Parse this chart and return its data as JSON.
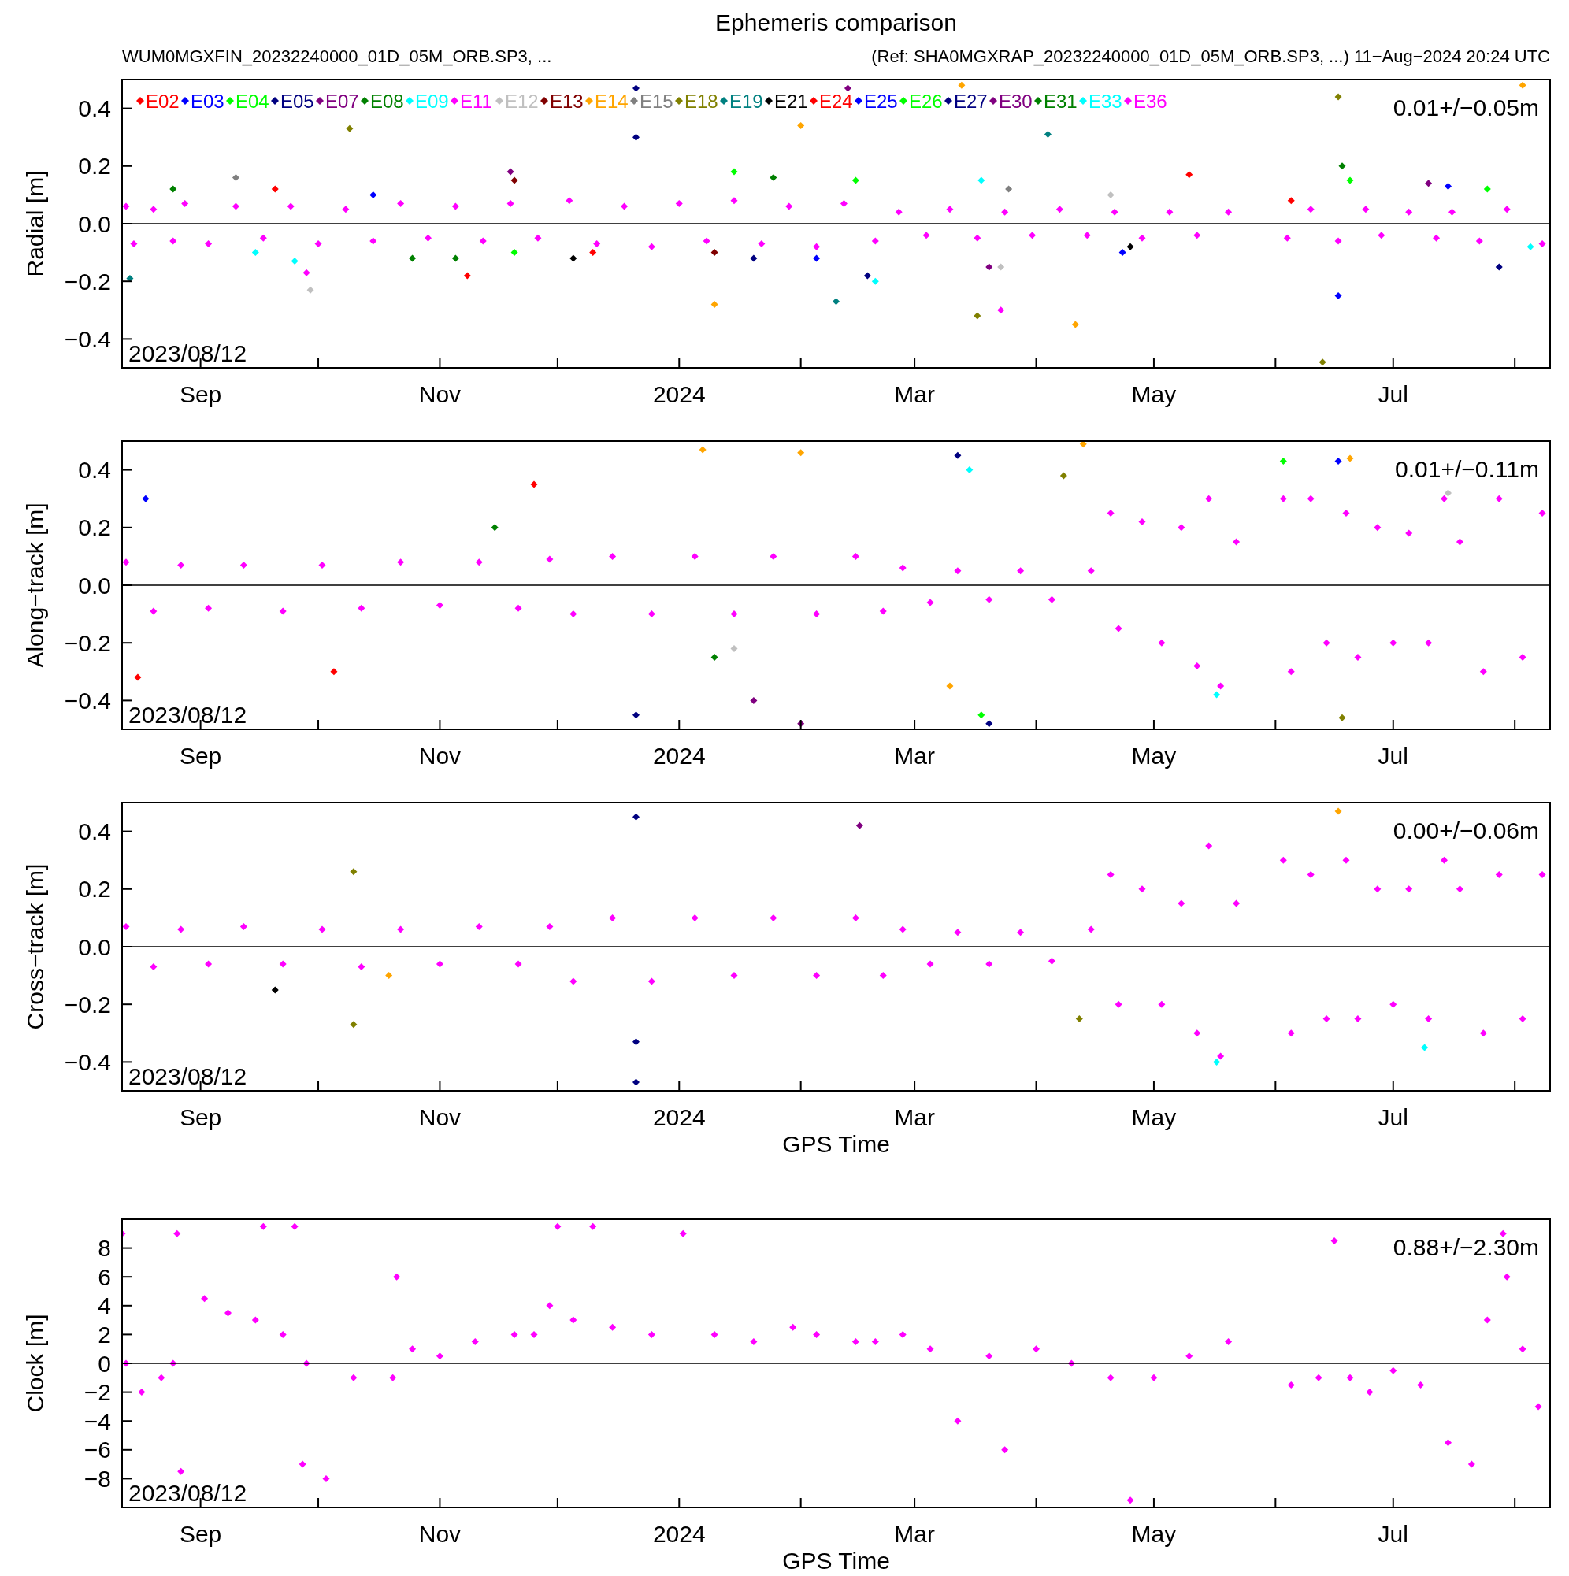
{
  "chart_data": [
    {
      "type": "scatter",
      "title": "Ephemeris comparison",
      "subtitle": "WUM0MGXFIN_20232240000_01D_05M_ORB.SP3, ...",
      "ylabel": "Radial [m]",
      "annotations": [
        "2023/08/12",
        "0.01+/−0.05m",
        "(Ref: SHA0MGXRAP_20232240000_01D_05M_ORB.SP3, ...) 11−Aug−2024 20:24 UTC"
      ],
      "xlim": [
        "2023-08-12",
        "2024-08-10"
      ],
      "xticks": [
        {
          "value": "2023-09-01",
          "label": "Sep"
        },
        {
          "value": "2023-10-01",
          "label": null
        },
        {
          "value": "2023-11-01",
          "label": "Nov"
        },
        {
          "value": "2023-12-01",
          "label": null
        },
        {
          "value": "2024-01-01",
          "label": "2024"
        },
        {
          "value": "2024-02-01",
          "label": null
        },
        {
          "value": "2024-03-01",
          "label": "Mar"
        },
        {
          "value": "2024-04-01",
          "label": null
        },
        {
          "value": "2024-05-01",
          "label": "May"
        },
        {
          "value": "2024-06-01",
          "label": null
        },
        {
          "value": "2024-07-01",
          "label": "Jul"
        },
        {
          "value": "2024-08-01",
          "label": null
        }
      ],
      "ylim": [
        -0.5,
        0.5
      ],
      "yticks": [
        {
          "value": -0.4,
          "label": "−0.4"
        },
        {
          "value": -0.2,
          "label": "−0.2"
        },
        {
          "value": 0,
          "label": "0.0"
        },
        {
          "value": 0.2,
          "label": "0.2"
        },
        {
          "value": 0.4,
          "label": "0.4"
        }
      ],
      "ref_lines": [
        {
          "axis": "y",
          "value": 0,
          "color": "#000000"
        }
      ],
      "legend": "top left",
      "marker": "diamond",
      "grid": false,
      "series": [
        {
          "name": "E02",
          "color": "#ff0000",
          "x": [
            "2023-09-20",
            "2023-12-10",
            "2024-05-10"
          ],
          "values": [
            0.12,
            -0.1,
            0.17
          ]
        },
        {
          "name": "E03",
          "color": "#0000ff",
          "x": [
            "2023-10-15",
            "2024-02-05",
            "2024-06-17"
          ],
          "values": [
            0.1,
            -0.12,
            -0.25
          ]
        },
        {
          "name": "E04",
          "color": "#00ff00",
          "x": [
            "2023-11-20",
            "2024-02-15",
            "2024-07-25"
          ],
          "values": [
            -0.1,
            0.15,
            0.12
          ]
        },
        {
          "name": "E05",
          "color": "#000080",
          "x": [
            "2023-12-21",
            "2023-12-21",
            "2024-01-20"
          ],
          "values": [
            0.47,
            0.3,
            -0.12
          ]
        },
        {
          "name": "E07",
          "color": "#800080",
          "x": [
            "2023-11-19",
            "2024-03-20"
          ],
          "values": [
            0.18,
            -0.15
          ]
        },
        {
          "name": "E08",
          "color": "#008000",
          "x": [
            "2023-08-25",
            "2023-11-05",
            "2024-06-18"
          ],
          "values": [
            0.12,
            -0.12,
            0.2
          ]
        },
        {
          "name": "E09",
          "color": "#00ffff",
          "x": [
            "2023-09-25",
            "2024-03-18"
          ],
          "values": [
            -0.13,
            0.15
          ]
        },
        {
          "name": "E11",
          "color": "#ff00ff",
          "x": [
            "2023-09-28",
            "2024-03-23"
          ],
          "values": [
            -0.17,
            -0.3
          ]
        },
        {
          "name": "E12",
          "color": "#c0c0c0",
          "x": [
            "2023-09-29",
            "2024-03-23",
            "2024-04-20"
          ],
          "values": [
            -0.23,
            -0.15,
            0.1
          ]
        },
        {
          "name": "E13",
          "color": "#800000",
          "x": [
            "2023-11-20",
            "2024-01-10"
          ],
          "values": [
            0.15,
            -0.1
          ]
        },
        {
          "name": "E14",
          "color": "#ffa500",
          "x": [
            "2024-04-11",
            "2024-03-13",
            "2024-02-01",
            "2024-08-03",
            "2024-01-10"
          ],
          "values": [
            -0.35,
            0.48,
            0.34,
            0.48,
            -0.28
          ]
        },
        {
          "name": "E15",
          "color": "#808080",
          "x": [
            "2023-09-10",
            "2024-03-25"
          ],
          "values": [
            0.16,
            0.12
          ]
        },
        {
          "name": "E18",
          "color": "#808000",
          "x": [
            "2023-10-09",
            "2024-03-17",
            "2024-06-17",
            "2024-06-13"
          ],
          "values": [
            0.33,
            -0.32,
            0.44,
            -0.48
          ]
        },
        {
          "name": "E19",
          "color": "#008080",
          "x": [
            "2024-04-04",
            "2024-02-10",
            "2023-08-14"
          ],
          "values": [
            0.31,
            -0.27,
            -0.19
          ]
        },
        {
          "name": "E21",
          "color": "#000000",
          "x": [
            "2023-12-05",
            "2024-04-25"
          ],
          "values": [
            -0.12,
            -0.08
          ]
        },
        {
          "name": "E24",
          "color": "#ff0000",
          "x": [
            "2023-11-08",
            "2024-06-05"
          ],
          "values": [
            -0.18,
            0.08
          ]
        },
        {
          "name": "E25",
          "color": "#0000ff",
          "x": [
            "2024-07-15",
            "2024-04-23"
          ],
          "values": [
            0.13,
            -0.1
          ]
        },
        {
          "name": "E26",
          "color": "#00ff00",
          "x": [
            "2024-01-15",
            "2024-06-20"
          ],
          "values": [
            0.18,
            0.15
          ]
        },
        {
          "name": "E27",
          "color": "#000080",
          "x": [
            "2024-02-18",
            "2024-07-28"
          ],
          "values": [
            -0.18,
            -0.15
          ]
        },
        {
          "name": "E30",
          "color": "#800080",
          "x": [
            "2024-02-13",
            "2024-07-10"
          ],
          "values": [
            0.47,
            0.14
          ]
        },
        {
          "name": "E31",
          "color": "#008000",
          "x": [
            "2023-10-25",
            "2024-01-25"
          ],
          "values": [
            -0.12,
            0.16
          ]
        },
        {
          "name": "E33",
          "color": "#00ffff",
          "x": [
            "2023-09-15",
            "2024-02-20",
            "2024-08-05"
          ],
          "values": [
            -0.1,
            -0.2,
            -0.08
          ]
        },
        {
          "name": "E36",
          "color": "#ff00ff",
          "x": [
            "2023-08-13",
            "2023-08-15",
            "2023-08-20",
            "2023-08-25",
            "2023-08-28",
            "2023-09-03",
            "2023-09-10",
            "2023-09-17",
            "2023-09-24",
            "2023-10-01",
            "2023-10-08",
            "2023-10-15",
            "2023-10-22",
            "2023-10-29",
            "2023-11-05",
            "2023-11-12",
            "2023-11-19",
            "2023-11-26",
            "2023-12-04",
            "2023-12-11",
            "2023-12-18",
            "2023-12-25",
            "2024-01-01",
            "2024-01-08",
            "2024-01-15",
            "2024-01-22",
            "2024-01-29",
            "2024-02-05",
            "2024-02-12",
            "2024-02-20",
            "2024-02-26",
            "2024-03-04",
            "2024-03-10",
            "2024-03-17",
            "2024-03-24",
            "2024-03-31",
            "2024-04-07",
            "2024-04-14",
            "2024-04-21",
            "2024-04-28",
            "2024-05-05",
            "2024-05-12",
            "2024-05-20",
            "2024-06-04",
            "2024-06-10",
            "2024-06-17",
            "2024-06-24",
            "2024-06-28",
            "2024-07-05",
            "2024-07-12",
            "2024-07-16",
            "2024-07-23",
            "2024-07-30",
            "2024-08-08"
          ],
          "values": [
            0.06,
            -0.07,
            0.05,
            -0.06,
            0.07,
            -0.07,
            0.06,
            -0.05,
            0.06,
            -0.07,
            0.05,
            -0.06,
            0.07,
            -0.05,
            0.06,
            -0.06,
            0.07,
            -0.05,
            0.08,
            -0.07,
            0.06,
            -0.08,
            0.07,
            -0.06,
            0.08,
            -0.07,
            0.06,
            -0.08,
            0.07,
            -0.06,
            0.04,
            -0.04,
            0.05,
            -0.05,
            0.04,
            -0.04,
            0.05,
            -0.04,
            0.04,
            -0.05,
            0.04,
            -0.04,
            0.04,
            -0.05,
            0.05,
            -0.06,
            0.05,
            -0.04,
            0.04,
            -0.05,
            0.04,
            -0.06,
            0.05,
            -0.07
          ]
        }
      ]
    },
    {
      "type": "scatter",
      "ylabel": "Along−track [m]",
      "annotations": [
        "2023/08/12",
        "0.01+/−0.11m"
      ],
      "xlim": [
        "2023-08-12",
        "2024-08-10"
      ],
      "xticks": [
        {
          "value": "2023-09-01",
          "label": "Sep"
        },
        {
          "value": "2023-10-01",
          "label": null
        },
        {
          "value": "2023-11-01",
          "label": "Nov"
        },
        {
          "value": "2023-12-01",
          "label": null
        },
        {
          "value": "2024-01-01",
          "label": "2024"
        },
        {
          "value": "2024-02-01",
          "label": null
        },
        {
          "value": "2024-03-01",
          "label": "Mar"
        },
        {
          "value": "2024-04-01",
          "label": null
        },
        {
          "value": "2024-05-01",
          "label": "May"
        },
        {
          "value": "2024-06-01",
          "label": null
        },
        {
          "value": "2024-07-01",
          "label": "Jul"
        },
        {
          "value": "2024-08-01",
          "label": null
        }
      ],
      "ylim": [
        -0.5,
        0.5
      ],
      "yticks": [
        {
          "value": -0.4,
          "label": "−0.4"
        },
        {
          "value": -0.2,
          "label": "−0.2"
        },
        {
          "value": 0,
          "label": "0.0"
        },
        {
          "value": 0.2,
          "label": "0.2"
        },
        {
          "value": 0.4,
          "label": "0.4"
        }
      ],
      "ref_lines": [
        {
          "axis": "y",
          "value": 0,
          "color": "#000000"
        }
      ],
      "marker": "diamond",
      "grid": false,
      "series": [
        {
          "color": "#ffa500",
          "x": [
            "2024-01-07",
            "2024-02-01",
            "2024-03-10",
            "2024-04-13",
            "2024-06-20"
          ],
          "values": [
            0.47,
            0.46,
            -0.35,
            0.49,
            0.44
          ]
        },
        {
          "color": "#000080",
          "x": [
            "2023-12-21",
            "2024-03-12",
            "2024-03-20"
          ],
          "values": [
            -0.45,
            0.45,
            -0.48
          ]
        },
        {
          "color": "#ff0000",
          "x": [
            "2023-08-16",
            "2023-10-05",
            "2023-11-25"
          ],
          "values": [
            -0.32,
            -0.3,
            0.35
          ]
        },
        {
          "color": "#008000",
          "x": [
            "2023-11-15",
            "2024-01-10"
          ],
          "values": [
            0.2,
            -0.25
          ]
        },
        {
          "color": "#00ff00",
          "x": [
            "2024-06-03",
            "2024-03-18"
          ],
          "values": [
            0.43,
            -0.45
          ]
        },
        {
          "color": "#0000ff",
          "x": [
            "2023-08-18",
            "2024-06-17"
          ],
          "values": [
            0.3,
            0.43
          ]
        },
        {
          "color": "#800080",
          "x": [
            "2024-02-01",
            "2024-01-20"
          ],
          "values": [
            -0.48,
            -0.4
          ]
        },
        {
          "color": "#808000",
          "x": [
            "2024-04-08",
            "2024-06-18"
          ],
          "values": [
            0.38,
            -0.46
          ]
        },
        {
          "color": "#00ffff",
          "x": [
            "2024-03-15",
            "2024-05-17"
          ],
          "values": [
            0.4,
            -0.38
          ]
        },
        {
          "color": "#c0c0c0",
          "x": [
            "2024-01-15",
            "2024-07-15"
          ],
          "values": [
            -0.22,
            0.32
          ]
        },
        {
          "color": "#ff00ff",
          "x": [
            "2023-08-13",
            "2023-08-20",
            "2023-08-27",
            "2023-09-03",
            "2023-09-12",
            "2023-09-22",
            "2023-10-02",
            "2023-10-12",
            "2023-10-22",
            "2023-11-01",
            "2023-11-11",
            "2023-11-21",
            "2023-11-29",
            "2023-12-05",
            "2023-12-15",
            "2023-12-25",
            "2024-01-05",
            "2024-01-15",
            "2024-01-25",
            "2024-02-05",
            "2024-02-15",
            "2024-02-22",
            "2024-02-27",
            "2024-03-05",
            "2024-03-12",
            "2024-03-20",
            "2024-03-28",
            "2024-04-05",
            "2024-04-15",
            "2024-04-20",
            "2024-04-22",
            "2024-04-28",
            "2024-05-03",
            "2024-05-08",
            "2024-05-12",
            "2024-05-15",
            "2024-05-18",
            "2024-05-22",
            "2024-06-03",
            "2024-06-05",
            "2024-06-10",
            "2024-06-14",
            "2024-06-19",
            "2024-06-22",
            "2024-06-27",
            "2024-07-01",
            "2024-07-05",
            "2024-07-10",
            "2024-07-14",
            "2024-07-18",
            "2024-07-24",
            "2024-07-28",
            "2024-08-03",
            "2024-08-08"
          ],
          "values": [
            0.08,
            -0.09,
            0.07,
            -0.08,
            0.07,
            -0.09,
            0.07,
            -0.08,
            0.08,
            -0.07,
            0.08,
            -0.08,
            0.09,
            -0.1,
            0.1,
            -0.1,
            0.1,
            -0.1,
            0.1,
            -0.1,
            0.1,
            -0.09,
            0.06,
            -0.06,
            0.05,
            -0.05,
            0.05,
            -0.05,
            0.05,
            0.25,
            -0.15,
            0.22,
            -0.2,
            0.2,
            -0.28,
            0.3,
            -0.35,
            0.15,
            0.3,
            -0.3,
            0.3,
            -0.2,
            0.25,
            -0.25,
            0.2,
            -0.2,
            0.18,
            -0.2,
            0.3,
            0.15,
            -0.3,
            0.3,
            -0.25,
            0.25
          ]
        }
      ]
    },
    {
      "type": "scatter",
      "xlabel": "GPS Time",
      "ylabel": "Cross−track [m]",
      "annotations": [
        "2023/08/12",
        "0.00+/−0.06m"
      ],
      "xlim": [
        "2023-08-12",
        "2024-08-10"
      ],
      "xticks": [
        {
          "value": "2023-09-01",
          "label": "Sep"
        },
        {
          "value": "2023-10-01",
          "label": null
        },
        {
          "value": "2023-11-01",
          "label": "Nov"
        },
        {
          "value": "2023-12-01",
          "label": null
        },
        {
          "value": "2024-01-01",
          "label": "2024"
        },
        {
          "value": "2024-02-01",
          "label": null
        },
        {
          "value": "2024-03-01",
          "label": "Mar"
        },
        {
          "value": "2024-04-01",
          "label": null
        },
        {
          "value": "2024-05-01",
          "label": "May"
        },
        {
          "value": "2024-06-01",
          "label": null
        },
        {
          "value": "2024-07-01",
          "label": "Jul"
        },
        {
          "value": "2024-08-01",
          "label": null
        }
      ],
      "ylim": [
        -0.5,
        0.5
      ],
      "yticks": [
        {
          "value": -0.4,
          "label": "−0.4"
        },
        {
          "value": -0.2,
          "label": "−0.2"
        },
        {
          "value": 0,
          "label": "0.0"
        },
        {
          "value": 0.2,
          "label": "0.2"
        },
        {
          "value": 0.4,
          "label": "0.4"
        }
      ],
      "ref_lines": [
        {
          "axis": "y",
          "value": 0,
          "color": "#000000"
        }
      ],
      "marker": "diamond",
      "grid": false,
      "series": [
        {
          "color": "#000080",
          "x": [
            "2023-12-21",
            "2023-12-21",
            "2023-12-21"
          ],
          "values": [
            0.45,
            -0.47,
            -0.33
          ]
        },
        {
          "color": "#808000",
          "x": [
            "2023-10-10",
            "2023-10-10",
            "2024-04-12"
          ],
          "values": [
            0.26,
            -0.27,
            -0.25
          ]
        },
        {
          "color": "#ffa500",
          "x": [
            "2023-10-19",
            "2024-06-17"
          ],
          "values": [
            -0.1,
            0.47
          ]
        },
        {
          "color": "#800080",
          "x": [
            "2024-02-16"
          ],
          "values": [
            0.42
          ]
        },
        {
          "color": "#00ffff",
          "x": [
            "2024-05-17",
            "2024-07-09"
          ],
          "values": [
            -0.4,
            -0.35
          ]
        },
        {
          "color": "#000000",
          "x": [
            "2023-09-20"
          ],
          "values": [
            -0.15
          ]
        },
        {
          "color": "#ff00ff",
          "x": [
            "2023-08-13",
            "2023-08-20",
            "2023-08-27",
            "2023-09-03",
            "2023-09-12",
            "2023-09-22",
            "2023-10-02",
            "2023-10-12",
            "2023-10-22",
            "2023-11-01",
            "2023-11-11",
            "2023-11-21",
            "2023-11-29",
            "2023-12-05",
            "2023-12-15",
            "2023-12-25",
            "2024-01-05",
            "2024-01-15",
            "2024-01-25",
            "2024-02-05",
            "2024-02-15",
            "2024-02-22",
            "2024-02-27",
            "2024-03-05",
            "2024-03-12",
            "2024-03-20",
            "2024-03-28",
            "2024-04-05",
            "2024-04-15",
            "2024-04-20",
            "2024-04-22",
            "2024-04-28",
            "2024-05-03",
            "2024-05-08",
            "2024-05-12",
            "2024-05-15",
            "2024-05-18",
            "2024-05-22",
            "2024-06-03",
            "2024-06-05",
            "2024-06-10",
            "2024-06-14",
            "2024-06-19",
            "2024-06-22",
            "2024-06-27",
            "2024-07-01",
            "2024-07-05",
            "2024-07-10",
            "2024-07-14",
            "2024-07-18",
            "2024-07-24",
            "2024-07-28",
            "2024-08-03",
            "2024-08-08"
          ],
          "values": [
            0.07,
            -0.07,
            0.06,
            -0.06,
            0.07,
            -0.06,
            0.06,
            -0.07,
            0.06,
            -0.06,
            0.07,
            -0.06,
            0.07,
            -0.12,
            0.1,
            -0.12,
            0.1,
            -0.1,
            0.1,
            -0.1,
            0.1,
            -0.1,
            0.06,
            -0.06,
            0.05,
            -0.06,
            0.05,
            -0.05,
            0.06,
            0.25,
            -0.2,
            0.2,
            -0.2,
            0.15,
            -0.3,
            0.35,
            -0.38,
            0.15,
            0.3,
            -0.3,
            0.25,
            -0.25,
            0.3,
            -0.25,
            0.2,
            -0.2,
            0.2,
            -0.25,
            0.3,
            0.2,
            -0.3,
            0.25,
            -0.25,
            0.25
          ]
        }
      ]
    },
    {
      "type": "scatter",
      "xlabel": "GPS Time",
      "ylabel": "Clock [m]",
      "annotations": [
        "2023/08/12",
        "0.88+/−2.30m"
      ],
      "xlim": [
        "2023-08-12",
        "2024-08-10"
      ],
      "xticks": [
        {
          "value": "2023-09-01",
          "label": "Sep"
        },
        {
          "value": "2023-10-01",
          "label": null
        },
        {
          "value": "2023-11-01",
          "label": "Nov"
        },
        {
          "value": "2023-12-01",
          "label": null
        },
        {
          "value": "2024-01-01",
          "label": "2024"
        },
        {
          "value": "2024-02-01",
          "label": null
        },
        {
          "value": "2024-03-01",
          "label": "Mar"
        },
        {
          "value": "2024-04-01",
          "label": null
        },
        {
          "value": "2024-05-01",
          "label": "May"
        },
        {
          "value": "2024-06-01",
          "label": null
        },
        {
          "value": "2024-07-01",
          "label": "Jul"
        },
        {
          "value": "2024-08-01",
          "label": null
        }
      ],
      "ylim": [
        -10,
        10
      ],
      "yticks": [
        {
          "value": -8,
          "label": "−8"
        },
        {
          "value": -6,
          "label": "−6"
        },
        {
          "value": -4,
          "label": "−4"
        },
        {
          "value": -2,
          "label": "−2"
        },
        0,
        2,
        4,
        6,
        8
      ],
      "ref_lines": [
        {
          "axis": "y",
          "value": 0,
          "color": "#000000"
        }
      ],
      "marker": "diamond",
      "grid": false,
      "series": [
        {
          "color": "#ff00ff",
          "x": [
            "2023-08-12",
            "2023-08-13",
            "2023-08-17",
            "2023-08-22",
            "2023-08-25",
            "2023-08-26",
            "2023-08-27",
            "2023-09-02",
            "2023-09-08",
            "2023-09-15",
            "2023-09-17",
            "2023-09-22",
            "2023-09-25",
            "2023-09-28",
            "2023-09-27",
            "2023-10-03",
            "2023-10-10",
            "2023-10-20",
            "2023-10-21",
            "2023-10-25",
            "2023-11-01",
            "2023-11-10",
            "2023-11-20",
            "2023-11-25",
            "2023-11-29",
            "2023-12-01",
            "2023-12-05",
            "2023-12-10",
            "2023-12-15",
            "2023-12-25",
            "2024-01-02",
            "2024-01-10",
            "2024-01-20",
            "2024-01-30",
            "2024-02-05",
            "2024-02-15",
            "2024-02-20",
            "2024-02-27",
            "2024-03-05",
            "2024-03-12",
            "2024-03-20",
            "2024-03-24",
            "2024-04-01",
            "2024-04-10",
            "2024-04-20",
            "2024-04-25",
            "2024-05-01",
            "2024-05-10",
            "2024-05-20",
            "2024-06-05",
            "2024-06-12",
            "2024-06-16",
            "2024-06-20",
            "2024-06-25",
            "2024-07-01",
            "2024-07-08",
            "2024-07-15",
            "2024-07-21",
            "2024-07-25",
            "2024-07-29",
            "2024-07-30",
            "2024-08-03",
            "2024-08-07"
          ],
          "values": [
            9,
            0,
            -2,
            -1,
            0,
            9,
            -7.5,
            4.5,
            3.5,
            3,
            9.5,
            2,
            9.5,
            0,
            -7,
            -8,
            -1,
            -1,
            6,
            1,
            0.5,
            1.5,
            2,
            2,
            4,
            9.5,
            3,
            9.5,
            2.5,
            2,
            9,
            2,
            1.5,
            2.5,
            2,
            1.5,
            1.5,
            2,
            1,
            -4,
            0.5,
            -6,
            1,
            0,
            -1,
            -9.5,
            -1,
            0.5,
            1.5,
            -1.5,
            -1,
            8.5,
            -1,
            -2,
            -0.5,
            -1.5,
            -5.5,
            -7,
            3,
            9,
            6,
            1,
            -3
          ]
        }
      ]
    }
  ]
}
